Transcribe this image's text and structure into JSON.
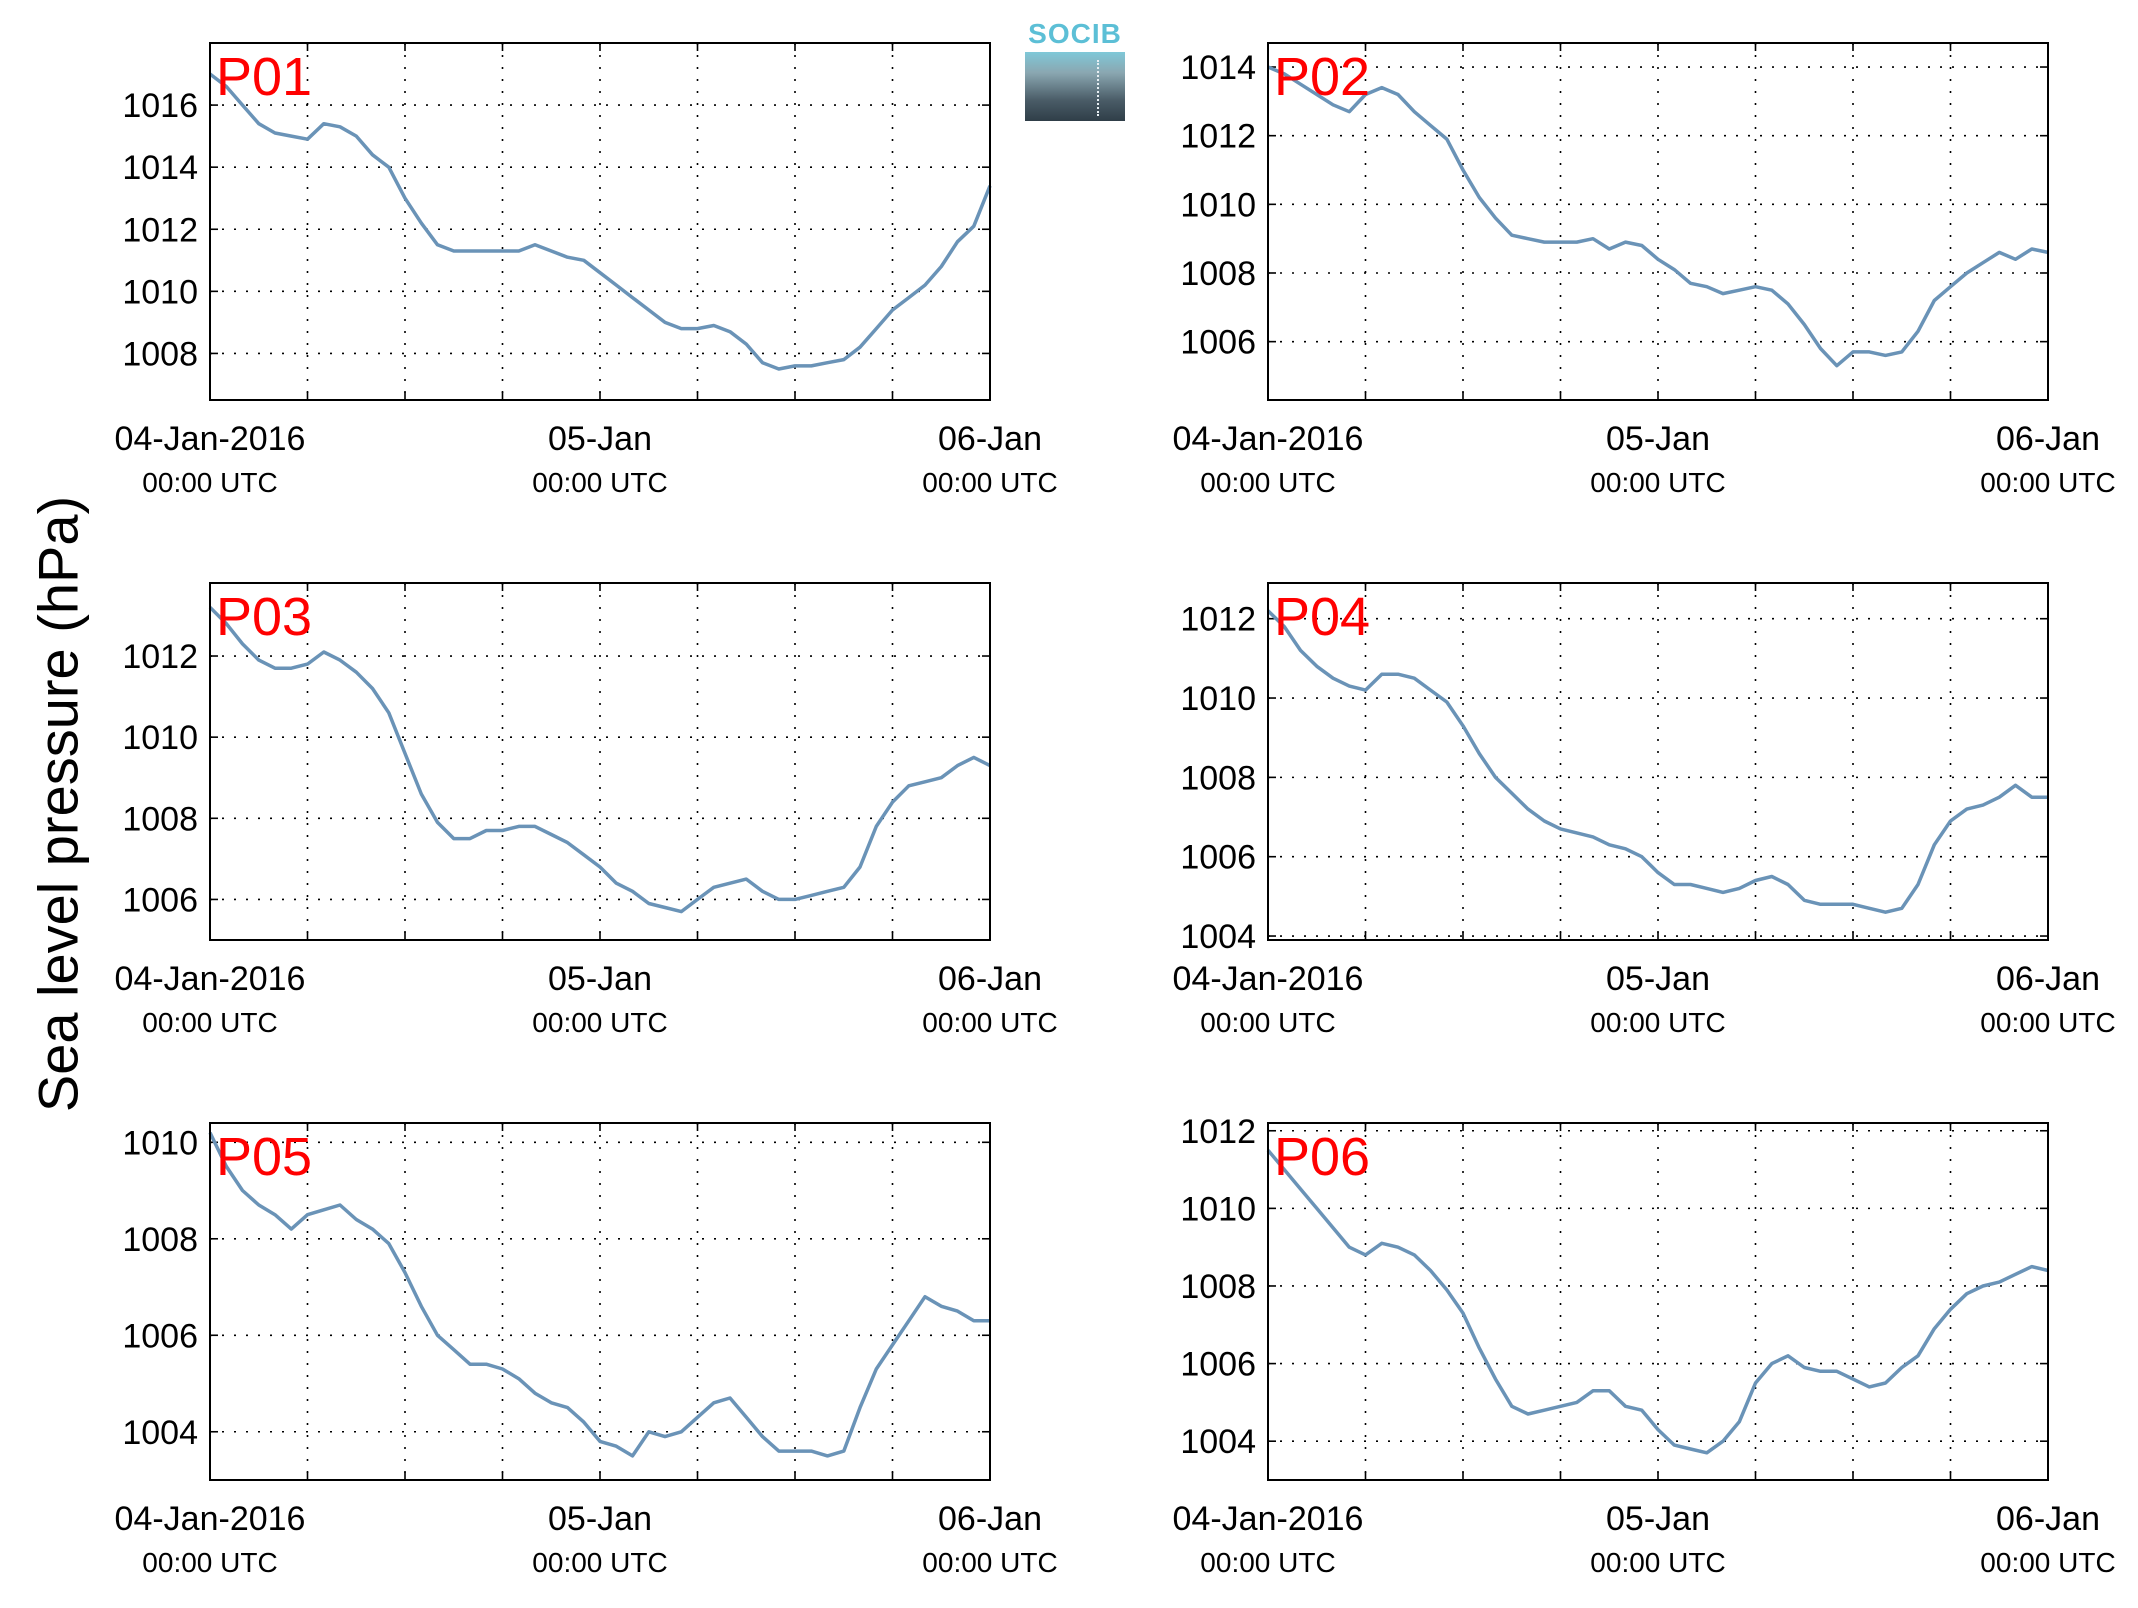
{
  "figure": {
    "ylabel": "Sea level pressure (hPa)",
    "line_color": "#6a93b7",
    "label_color": "#ff0000",
    "logo_text": "SOCIB"
  },
  "chart_data": [
    {
      "type": "line",
      "name": "P01",
      "xlim": [
        0,
        48
      ],
      "ylim": [
        1006.5,
        1018
      ],
      "yticks": [
        1008,
        1010,
        1012,
        1014,
        1016
      ],
      "xticks": [
        {
          "label": "04-Jan-2016",
          "sub": "00:00 UTC"
        },
        {
          "label": "05-Jan",
          "sub": "00:00 UTC"
        },
        {
          "label": "06-Jan",
          "sub": "00:00 UTC"
        }
      ],
      "x": [
        0,
        1,
        2,
        3,
        4,
        5,
        6,
        7,
        8,
        9,
        10,
        11,
        12,
        13,
        14,
        15,
        16,
        17,
        18,
        19,
        20,
        21,
        22,
        23,
        24,
        25,
        26,
        27,
        28,
        29,
        30,
        31,
        32,
        33,
        34,
        35,
        36,
        37,
        38,
        39,
        40,
        41,
        42,
        43,
        44,
        45,
        46,
        47,
        48
      ],
      "values": [
        1017.0,
        1016.6,
        1016.0,
        1015.4,
        1015.1,
        1015.0,
        1014.9,
        1015.4,
        1015.3,
        1015.0,
        1014.4,
        1014.0,
        1013.0,
        1012.2,
        1011.5,
        1011.3,
        1011.3,
        1011.3,
        1011.3,
        1011.3,
        1011.5,
        1011.3,
        1011.1,
        1011.0,
        1010.6,
        1010.2,
        1009.8,
        1009.4,
        1009.0,
        1008.8,
        1008.8,
        1008.9,
        1008.7,
        1008.3,
        1007.7,
        1007.5,
        1007.6,
        1007.6,
        1007.7,
        1007.8,
        1008.2,
        1008.8,
        1009.4,
        1009.8,
        1010.2,
        1010.8,
        1011.6,
        1012.1,
        1013.4
      ]
    },
    {
      "type": "line",
      "name": "P02",
      "xlim": [
        0,
        48
      ],
      "ylim": [
        1004.3,
        1014.7
      ],
      "yticks": [
        1006,
        1008,
        1010,
        1012,
        1014
      ],
      "xticks": [
        {
          "label": "04-Jan-2016",
          "sub": "00:00 UTC"
        },
        {
          "label": "05-Jan",
          "sub": "00:00 UTC"
        },
        {
          "label": "06-Jan",
          "sub": "00:00 UTC"
        }
      ],
      "x": [
        0,
        1,
        2,
        3,
        4,
        5,
        6,
        7,
        8,
        9,
        10,
        11,
        12,
        13,
        14,
        15,
        16,
        17,
        18,
        19,
        20,
        21,
        22,
        23,
        24,
        25,
        26,
        27,
        28,
        29,
        30,
        31,
        32,
        33,
        34,
        35,
        36,
        37,
        38,
        39,
        40,
        41,
        42,
        43,
        44,
        45,
        46,
        47,
        48
      ],
      "values": [
        1014.0,
        1013.8,
        1013.5,
        1013.2,
        1012.9,
        1012.7,
        1013.2,
        1013.4,
        1013.2,
        1012.7,
        1012.3,
        1011.9,
        1011.0,
        1010.2,
        1009.6,
        1009.1,
        1009.0,
        1008.9,
        1008.9,
        1008.9,
        1009.0,
        1008.7,
        1008.9,
        1008.8,
        1008.4,
        1008.1,
        1007.7,
        1007.6,
        1007.4,
        1007.5,
        1007.6,
        1007.5,
        1007.1,
        1006.5,
        1005.8,
        1005.3,
        1005.7,
        1005.7,
        1005.6,
        1005.7,
        1006.3,
        1007.2,
        1007.6,
        1008.0,
        1008.3,
        1008.6,
        1008.4,
        1008.7,
        1008.6
      ]
    },
    {
      "type": "line",
      "name": "P03",
      "xlim": [
        0,
        48
      ],
      "ylim": [
        1005.0,
        1013.8
      ],
      "yticks": [
        1006,
        1008,
        1010,
        1012
      ],
      "xticks": [
        {
          "label": "04-Jan-2016",
          "sub": "00:00 UTC"
        },
        {
          "label": "05-Jan",
          "sub": "00:00 UTC"
        },
        {
          "label": "06-Jan",
          "sub": "00:00 UTC"
        }
      ],
      "x": [
        0,
        1,
        2,
        3,
        4,
        5,
        6,
        7,
        8,
        9,
        10,
        11,
        12,
        13,
        14,
        15,
        16,
        17,
        18,
        19,
        20,
        21,
        22,
        23,
        24,
        25,
        26,
        27,
        28,
        29,
        30,
        31,
        32,
        33,
        34,
        35,
        36,
        37,
        38,
        39,
        40,
        41,
        42,
        43,
        44,
        45,
        46,
        47,
        48
      ],
      "values": [
        1013.2,
        1012.8,
        1012.3,
        1011.9,
        1011.7,
        1011.7,
        1011.8,
        1012.1,
        1011.9,
        1011.6,
        1011.2,
        1010.6,
        1009.6,
        1008.6,
        1007.9,
        1007.5,
        1007.5,
        1007.7,
        1007.7,
        1007.8,
        1007.8,
        1007.6,
        1007.4,
        1007.1,
        1006.8,
        1006.4,
        1006.2,
        1005.9,
        1005.8,
        1005.7,
        1006.0,
        1006.3,
        1006.4,
        1006.5,
        1006.2,
        1006.0,
        1006.0,
        1006.1,
        1006.2,
        1006.3,
        1006.8,
        1007.8,
        1008.4,
        1008.8,
        1008.9,
        1009.0,
        1009.3,
        1009.5,
        1009.3
      ]
    },
    {
      "type": "line",
      "name": "P04",
      "xlim": [
        0,
        48
      ],
      "ylim": [
        1003.9,
        1012.9
      ],
      "yticks": [
        1004,
        1006,
        1008,
        1010,
        1012
      ],
      "xticks": [
        {
          "label": "04-Jan-2016",
          "sub": "00:00 UTC"
        },
        {
          "label": "05-Jan",
          "sub": "00:00 UTC"
        },
        {
          "label": "06-Jan",
          "sub": "00:00 UTC"
        }
      ],
      "x": [
        0,
        1,
        2,
        3,
        4,
        5,
        6,
        7,
        8,
        9,
        10,
        11,
        12,
        13,
        14,
        15,
        16,
        17,
        18,
        19,
        20,
        21,
        22,
        23,
        24,
        25,
        26,
        27,
        28,
        29,
        30,
        31,
        32,
        33,
        34,
        35,
        36,
        37,
        38,
        39,
        40,
        41,
        42,
        43,
        44,
        45,
        46,
        47,
        48
      ],
      "values": [
        1012.2,
        1011.8,
        1011.2,
        1010.8,
        1010.5,
        1010.3,
        1010.2,
        1010.6,
        1010.6,
        1010.5,
        1010.2,
        1009.9,
        1009.3,
        1008.6,
        1008.0,
        1007.6,
        1007.2,
        1006.9,
        1006.7,
        1006.6,
        1006.5,
        1006.3,
        1006.2,
        1006.0,
        1005.6,
        1005.3,
        1005.3,
        1005.2,
        1005.1,
        1005.2,
        1005.4,
        1005.5,
        1005.3,
        1004.9,
        1004.8,
        1004.8,
        1004.8,
        1004.7,
        1004.6,
        1004.7,
        1005.3,
        1006.3,
        1006.9,
        1007.2,
        1007.3,
        1007.5,
        1007.8,
        1007.5,
        1007.5
      ]
    },
    {
      "type": "line",
      "name": "P05",
      "xlim": [
        0,
        48
      ],
      "ylim": [
        1003.0,
        1010.4
      ],
      "yticks": [
        1004,
        1006,
        1008,
        1010
      ],
      "xticks": [
        {
          "label": "04-Jan-2016",
          "sub": "00:00 UTC"
        },
        {
          "label": "05-Jan",
          "sub": "00:00 UTC"
        },
        {
          "label": "06-Jan",
          "sub": "00:00 UTC"
        }
      ],
      "x": [
        0,
        1,
        2,
        3,
        4,
        5,
        6,
        7,
        8,
        9,
        10,
        11,
        12,
        13,
        14,
        15,
        16,
        17,
        18,
        19,
        20,
        21,
        22,
        23,
        24,
        25,
        26,
        27,
        28,
        29,
        30,
        31,
        32,
        33,
        34,
        35,
        36,
        37,
        38,
        39,
        40,
        41,
        42,
        43,
        44,
        45,
        46,
        47,
        48
      ],
      "values": [
        1010.2,
        1009.5,
        1009.0,
        1008.7,
        1008.5,
        1008.2,
        1008.5,
        1008.6,
        1008.7,
        1008.4,
        1008.2,
        1007.9,
        1007.3,
        1006.6,
        1006.0,
        1005.7,
        1005.4,
        1005.4,
        1005.3,
        1005.1,
        1004.8,
        1004.6,
        1004.5,
        1004.2,
        1003.8,
        1003.7,
        1003.5,
        1004.0,
        1003.9,
        1004.0,
        1004.3,
        1004.6,
        1004.7,
        1004.3,
        1003.9,
        1003.6,
        1003.6,
        1003.6,
        1003.5,
        1003.6,
        1004.5,
        1005.3,
        1005.8,
        1006.3,
        1006.8,
        1006.6,
        1006.5,
        1006.3,
        1006.3
      ]
    },
    {
      "type": "line",
      "name": "P06",
      "xlim": [
        0,
        48
      ],
      "ylim": [
        1003.0,
        1012.2
      ],
      "yticks": [
        1004,
        1006,
        1008,
        1010,
        1012
      ],
      "xticks": [
        {
          "label": "04-Jan-2016",
          "sub": "00:00 UTC"
        },
        {
          "label": "05-Jan",
          "sub": "00:00 UTC"
        },
        {
          "label": "06-Jan",
          "sub": "00:00 UTC"
        }
      ],
      "x": [
        0,
        1,
        2,
        3,
        4,
        5,
        6,
        7,
        8,
        9,
        10,
        11,
        12,
        13,
        14,
        15,
        16,
        17,
        18,
        19,
        20,
        21,
        22,
        23,
        24,
        25,
        26,
        27,
        28,
        29,
        30,
        31,
        32,
        33,
        34,
        35,
        36,
        37,
        38,
        39,
        40,
        41,
        42,
        43,
        44,
        45,
        46,
        47,
        48
      ],
      "values": [
        1011.5,
        1011.0,
        1010.5,
        1010.0,
        1009.5,
        1009.0,
        1008.8,
        1009.1,
        1009.0,
        1008.8,
        1008.4,
        1007.9,
        1007.3,
        1006.4,
        1005.6,
        1004.9,
        1004.7,
        1004.8,
        1004.9,
        1005.0,
        1005.3,
        1005.3,
        1004.9,
        1004.8,
        1004.3,
        1003.9,
        1003.8,
        1003.7,
        1004.0,
        1004.5,
        1005.5,
        1006.0,
        1006.2,
        1005.9,
        1005.8,
        1005.8,
        1005.6,
        1005.4,
        1005.5,
        1005.9,
        1006.2,
        1006.9,
        1007.4,
        1007.8,
        1008.0,
        1008.1,
        1008.3,
        1008.5,
        1008.4
      ]
    }
  ]
}
